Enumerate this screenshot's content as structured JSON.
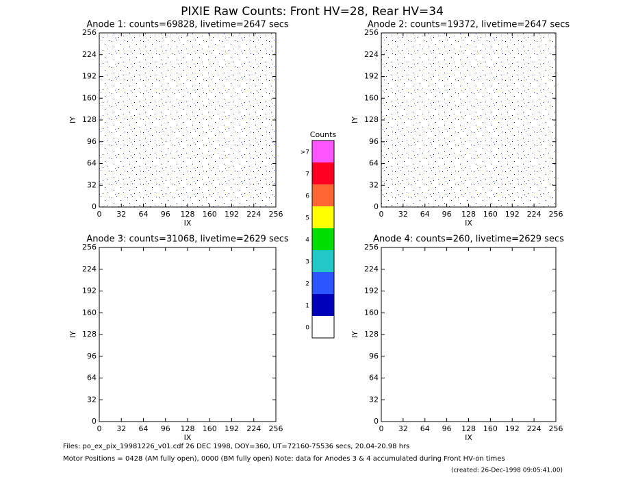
{
  "title": "PIXIE Raw Counts:  Front HV=28, Rear HV=34",
  "chart_data": [
    {
      "type": "heatmap",
      "title": "Anode 1: counts=69828, livetime=2647 secs",
      "xlabel": "IX",
      "ylabel": "IY",
      "xlim": [
        0,
        256
      ],
      "ylim": [
        0,
        256
      ],
      "xticks": [
        0,
        32,
        64,
        96,
        128,
        160,
        192,
        224,
        256
      ],
      "yticks": [
        0,
        32,
        64,
        96,
        128,
        160,
        192,
        224,
        256
      ]
    },
    {
      "type": "heatmap",
      "title": "Anode 2: counts=19372, livetime=2647 secs",
      "xlabel": "IX",
      "ylabel": "IY",
      "xlim": [
        0,
        256
      ],
      "ylim": [
        0,
        256
      ],
      "xticks": [
        0,
        32,
        64,
        96,
        128,
        160,
        192,
        224,
        256
      ],
      "yticks": [
        0,
        32,
        64,
        96,
        128,
        160,
        192,
        224,
        256
      ]
    },
    {
      "type": "heatmap",
      "title": "Anode 3: counts=31068, livetime=2629 secs",
      "xlabel": "IX",
      "ylabel": "IY",
      "xlim": [
        0,
        256
      ],
      "ylim": [
        0,
        256
      ],
      "xticks": [
        0,
        32,
        64,
        96,
        128,
        160,
        192,
        224,
        256
      ],
      "yticks": [
        0,
        32,
        64,
        96,
        128,
        160,
        192,
        224,
        256
      ]
    },
    {
      "type": "heatmap",
      "title": "Anode 4: counts=260, livetime=2629 secs",
      "xlabel": "IX",
      "ylabel": "IY",
      "xlim": [
        0,
        256
      ],
      "ylim": [
        0,
        256
      ],
      "xticks": [
        0,
        32,
        64,
        96,
        128,
        160,
        192,
        224,
        256
      ],
      "yticks": [
        0,
        32,
        64,
        96,
        128,
        160,
        192,
        224,
        256
      ]
    }
  ],
  "colorbar": {
    "title": "Counts",
    "categories": [
      "0",
      "1",
      "2",
      "3",
      "4",
      "5",
      "6",
      "7",
      ">7"
    ],
    "colors": [
      "#ffffff",
      "#0000bb",
      "#2a55ff",
      "#22c8c8",
      "#00dd00",
      "#ffff00",
      "#ff6633",
      "#ff0022",
      "#ff55ff"
    ]
  },
  "footer": [
    "Files: po_ex_pix_19981226_v01.cdf    26 DEC 1998, DOY=360, UT=72160-75536 secs, 20.04-20.98 hrs",
    "Motor Positions = 0428 (AM fully open), 0000 (BM fully open)    Note: data for Anodes 3 & 4 accumulated during Front HV-on times",
    "(created: 26-Dec-1998 09:05:41.00)"
  ]
}
